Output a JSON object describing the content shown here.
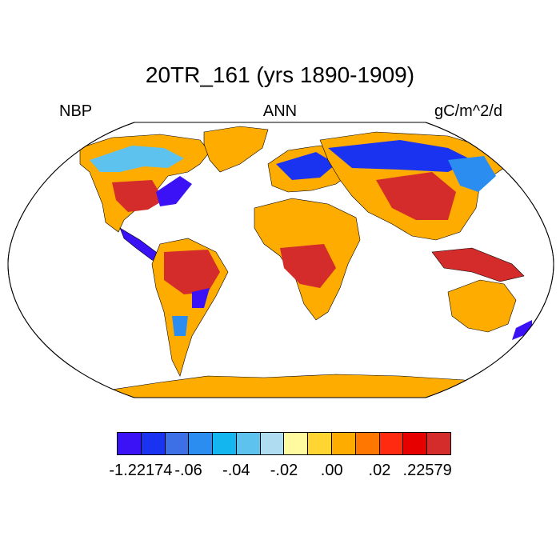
{
  "title": "20TR_161 (yrs 1890-1909)",
  "left_label": "NBP",
  "center_label": "ANN",
  "right_label": "gC/m^2/d",
  "colorbar": {
    "colors": [
      "#3b12f5",
      "#1a33f0",
      "#3d6fe6",
      "#2c8df0",
      "#14b6f0",
      "#5ec2ee",
      "#b0dcf1",
      "#fffaa0",
      "#ffd531",
      "#ffac00",
      "#ff7600",
      "#ff2a0f",
      "#e60000",
      "#d42b2b"
    ],
    "tick_labels": [
      "-1.22174",
      "-.06",
      "-.04",
      "-.02",
      ".00",
      ".02",
      ".22579"
    ]
  },
  "map": {
    "land_fill": "#ffac00",
    "ocean_fill": "#ffffff"
  }
}
